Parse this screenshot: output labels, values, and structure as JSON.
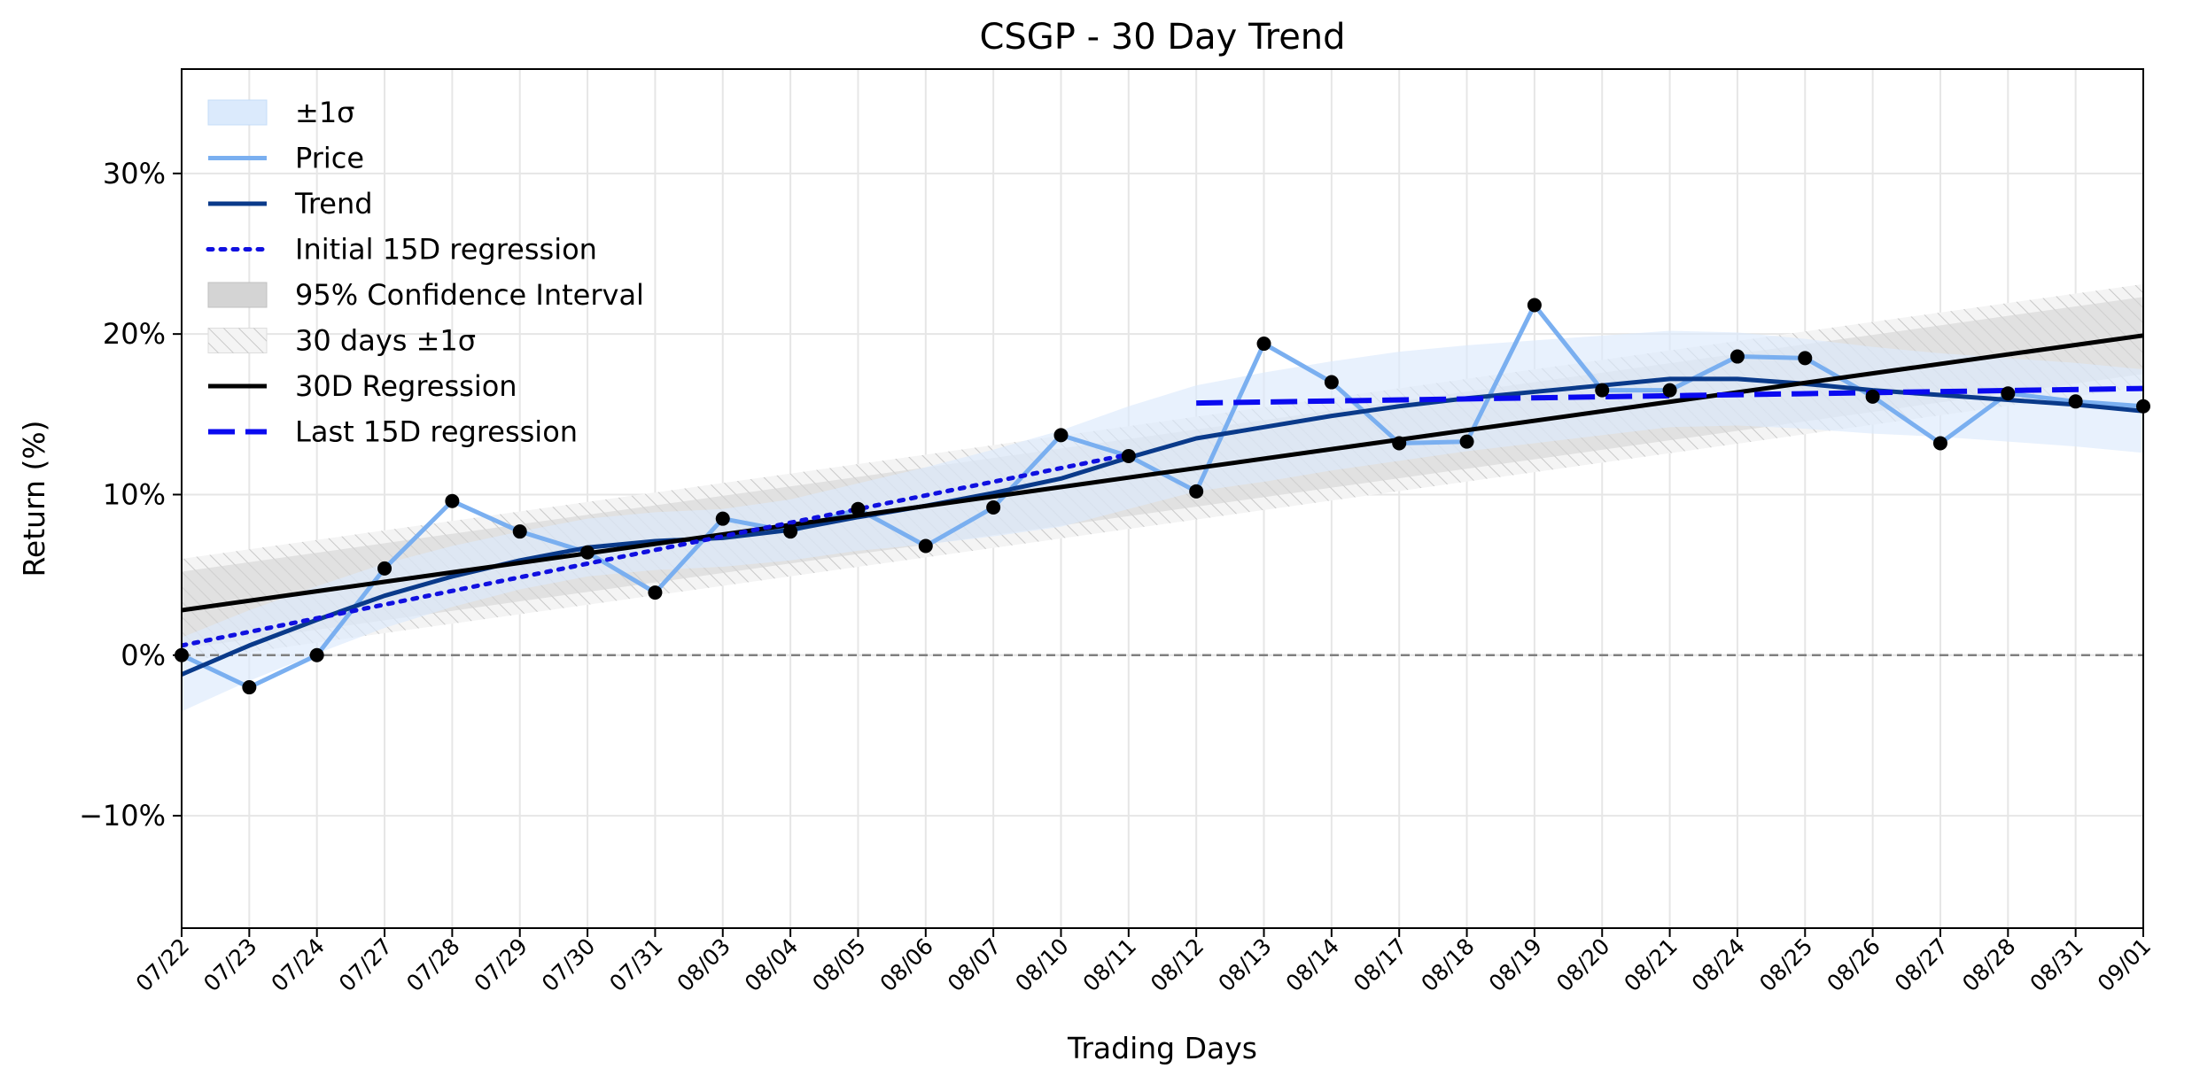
{
  "chart_data": {
    "type": "line",
    "title": "CSGP - 30 Day Trend",
    "xlabel": "Trading Days",
    "ylabel": "Return (%)",
    "ylim": [
      -17,
      36.5
    ],
    "yticks": [
      -10,
      0,
      10,
      20,
      30
    ],
    "ytick_labels": [
      "−10%",
      "0%",
      "10%",
      "20%",
      "30%"
    ],
    "grid": true,
    "legend_position": "top-left",
    "categories": [
      "07/22",
      "07/23",
      "07/24",
      "07/27",
      "07/28",
      "07/29",
      "07/30",
      "07/31",
      "08/03",
      "08/04",
      "08/05",
      "08/06",
      "08/07",
      "08/10",
      "08/11",
      "08/12",
      "08/13",
      "08/14",
      "08/17",
      "08/18",
      "08/19",
      "08/20",
      "08/21",
      "08/24",
      "08/25",
      "08/26",
      "08/27",
      "08/28",
      "08/31",
      "09/01"
    ],
    "series": [
      {
        "name": "Price",
        "style": "line-markers",
        "color": "#7aaff0",
        "values": [
          0.0,
          -2.0,
          0.0,
          5.4,
          9.6,
          7.7,
          6.4,
          3.9,
          8.5,
          7.7,
          9.1,
          6.8,
          9.2,
          13.7,
          12.4,
          10.2,
          19.4,
          17.0,
          13.2,
          13.3,
          21.8,
          16.5,
          16.5,
          18.6,
          18.5,
          16.1,
          13.2,
          16.3,
          15.8,
          15.5
        ]
      },
      {
        "name": "Trend",
        "style": "line",
        "color": "#0a3a8a",
        "values": [
          -1.2,
          0.6,
          2.2,
          3.7,
          4.9,
          5.9,
          6.7,
          7.1,
          7.3,
          7.8,
          8.6,
          9.3,
          10.1,
          11.0,
          12.3,
          13.5,
          14.2,
          14.9,
          15.5,
          16.0,
          16.4,
          16.8,
          17.2,
          17.2,
          16.9,
          16.5,
          16.2,
          15.9,
          15.6,
          15.2
        ]
      },
      {
        "name": "±1σ",
        "style": "band",
        "color": "#dbeafc",
        "halfwidth": [
          2.3,
          2.2,
          2.1,
          2.0,
          1.9,
          1.8,
          1.8,
          1.8,
          1.8,
          1.9,
          2.1,
          2.4,
          2.7,
          3.0,
          3.2,
          3.3,
          3.4,
          3.4,
          3.4,
          3.3,
          3.2,
          3.1,
          3.0,
          2.9,
          2.8,
          2.7,
          2.6,
          2.6,
          2.6,
          2.6
        ]
      },
      {
        "name": "Initial 15D regression",
        "style": "dotted",
        "color": "#1010e0",
        "x_range": [
          0,
          14
        ],
        "intercept": 0.6,
        "slope": 0.85
      },
      {
        "name": "95% Confidence Interval",
        "style": "band",
        "color": "#d4d4d4",
        "halfwidth_start": 2.4,
        "halfwidth_end": 2.4
      },
      {
        "name": "30 days ±1σ",
        "style": "hatched-band",
        "color": "#cfcfcf",
        "halfwidth": 3.2
      },
      {
        "name": "30D Regression",
        "style": "line",
        "color": "#000000",
        "x_range": [
          0,
          29
        ],
        "intercept": 2.8,
        "slope": 0.59
      },
      {
        "name": "Last 15D regression",
        "style": "dashed",
        "color": "#0a0af0",
        "x_range": [
          15,
          29
        ],
        "intercept": 15.7,
        "slope": 0.065
      }
    ],
    "reference_line": {
      "y": 0,
      "color": "#808080",
      "style": "dashed"
    },
    "legend_entries": [
      "±1σ",
      "Price",
      "Trend",
      "Initial 15D regression",
      "95% Confidence Interval",
      "30 days ±1σ",
      "30D Regression",
      "Last 15D regression"
    ]
  }
}
